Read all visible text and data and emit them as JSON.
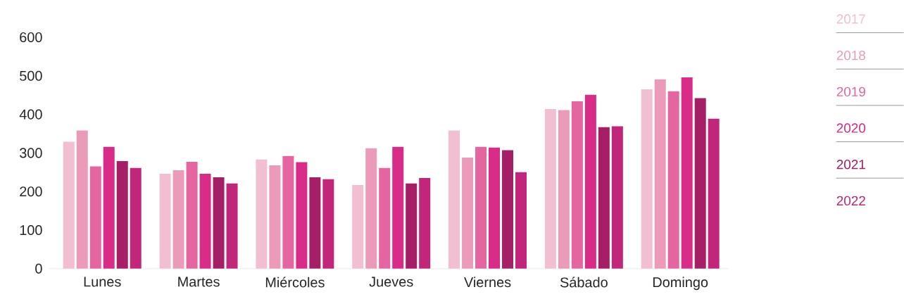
{
  "chart_data": {
    "type": "bar",
    "categories": [
      "Lunes",
      "Martes",
      "Miércoles",
      "Jueves",
      "Viernes",
      "Sábado",
      "Domingo"
    ],
    "series": [
      {
        "name": "2017",
        "color": "#f2bfd2",
        "values": [
          329,
          246,
          283,
          217,
          358,
          414,
          465
        ]
      },
      {
        "name": "2018",
        "color": "#ec9aba",
        "values": [
          358,
          255,
          268,
          312,
          288,
          411,
          491
        ]
      },
      {
        "name": "2019",
        "color": "#e565a0",
        "values": [
          265,
          277,
          292,
          261,
          316,
          434,
          460
        ]
      },
      {
        "name": "2020",
        "color": "#d92b88",
        "values": [
          316,
          246,
          276,
          316,
          314,
          451,
          496
        ]
      },
      {
        "name": "2021",
        "color": "#a61e66",
        "values": [
          279,
          237,
          237,
          221,
          307,
          367,
          442
        ]
      },
      {
        "name": "2022",
        "color": "#c1267b",
        "values": [
          261,
          221,
          232,
          235,
          250,
          369,
          389
        ]
      }
    ],
    "ylim": [
      0,
      600
    ],
    "yticks": [
      0,
      100,
      200,
      300,
      400,
      500,
      600
    ],
    "legend": "right",
    "grid": false
  }
}
